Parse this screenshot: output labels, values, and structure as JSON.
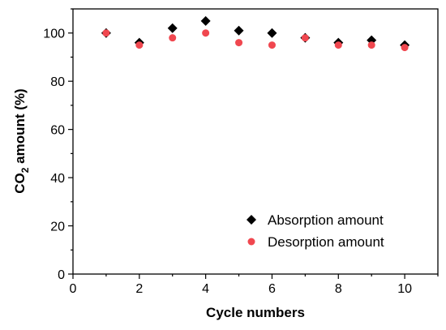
{
  "chart_data": {
    "type": "scatter",
    "xlabel": "Cycle numbers",
    "ylabel_main": "CO",
    "ylabel_sub": "2",
    "ylabel_rest": " amount (%)",
    "xlim": [
      0,
      11
    ],
    "ylim": [
      0,
      110
    ],
    "xticks": [
      "0",
      "2",
      "4",
      "6",
      "8",
      "10"
    ],
    "yticks": [
      "0",
      "20",
      "40",
      "60",
      "80",
      "100"
    ],
    "grid": false,
    "legend_position": "bottom-right",
    "series": [
      {
        "name": "Absorption amount",
        "marker": "diamond",
        "color": "#000000",
        "x": [
          1,
          2,
          3,
          4,
          5,
          6,
          7,
          8,
          9,
          10
        ],
        "y": [
          100,
          96,
          102,
          105,
          101,
          100,
          98,
          96,
          97,
          95
        ]
      },
      {
        "name": "Desorption amount",
        "marker": "circle",
        "color": "#f0474f",
        "x": [
          1,
          2,
          3,
          4,
          5,
          6,
          7,
          8,
          9,
          10
        ],
        "y": [
          100,
          95,
          98,
          100,
          96,
          95,
          98,
          95,
          95,
          94
        ]
      }
    ]
  }
}
